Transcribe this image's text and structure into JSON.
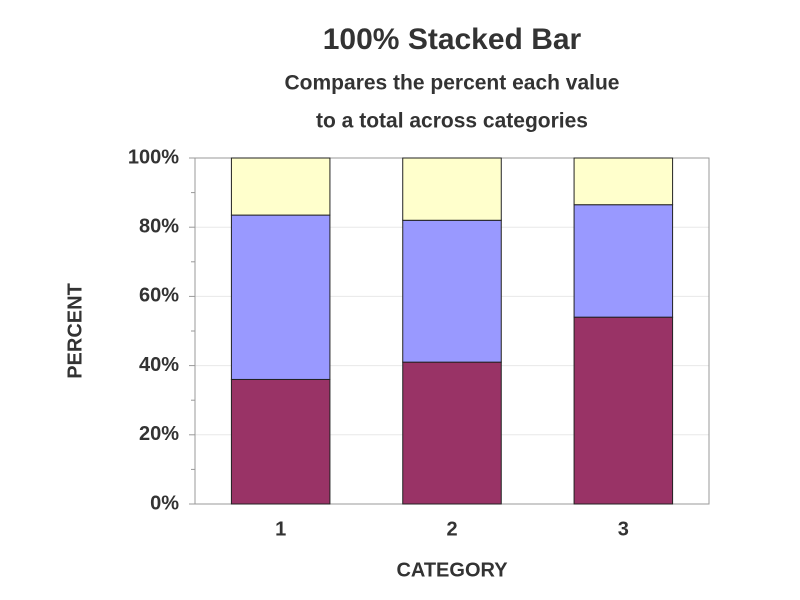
{
  "chart_data": {
    "type": "stacked_bar_100",
    "title": "100% Stacked Bar",
    "subtitle": [
      "Compares the percent each value",
      "to a total across categories"
    ],
    "x_label": "CATEGORY",
    "y_label": "PERCENT",
    "categories": [
      "1",
      "2",
      "3"
    ],
    "series": [
      {
        "color": "#993366",
        "values": [
          36,
          41,
          54
        ]
      },
      {
        "color": "#9999ff",
        "values": [
          47.5,
          41,
          32.5
        ]
      },
      {
        "color": "#ffffcc",
        "values": [
          16.5,
          18,
          13.5
        ]
      }
    ],
    "ylim": [
      0,
      100
    ],
    "yticks": [
      {
        "value": 0,
        "label": "0%"
      },
      {
        "value": 20,
        "label": "20%"
      },
      {
        "value": 40,
        "label": "40%"
      },
      {
        "value": 60,
        "label": "60%"
      },
      {
        "value": 80,
        "label": "80%"
      },
      {
        "value": 100,
        "label": "100%"
      }
    ],
    "yminorticks": [
      10,
      30,
      50,
      70,
      90
    ],
    "grid": true
  }
}
